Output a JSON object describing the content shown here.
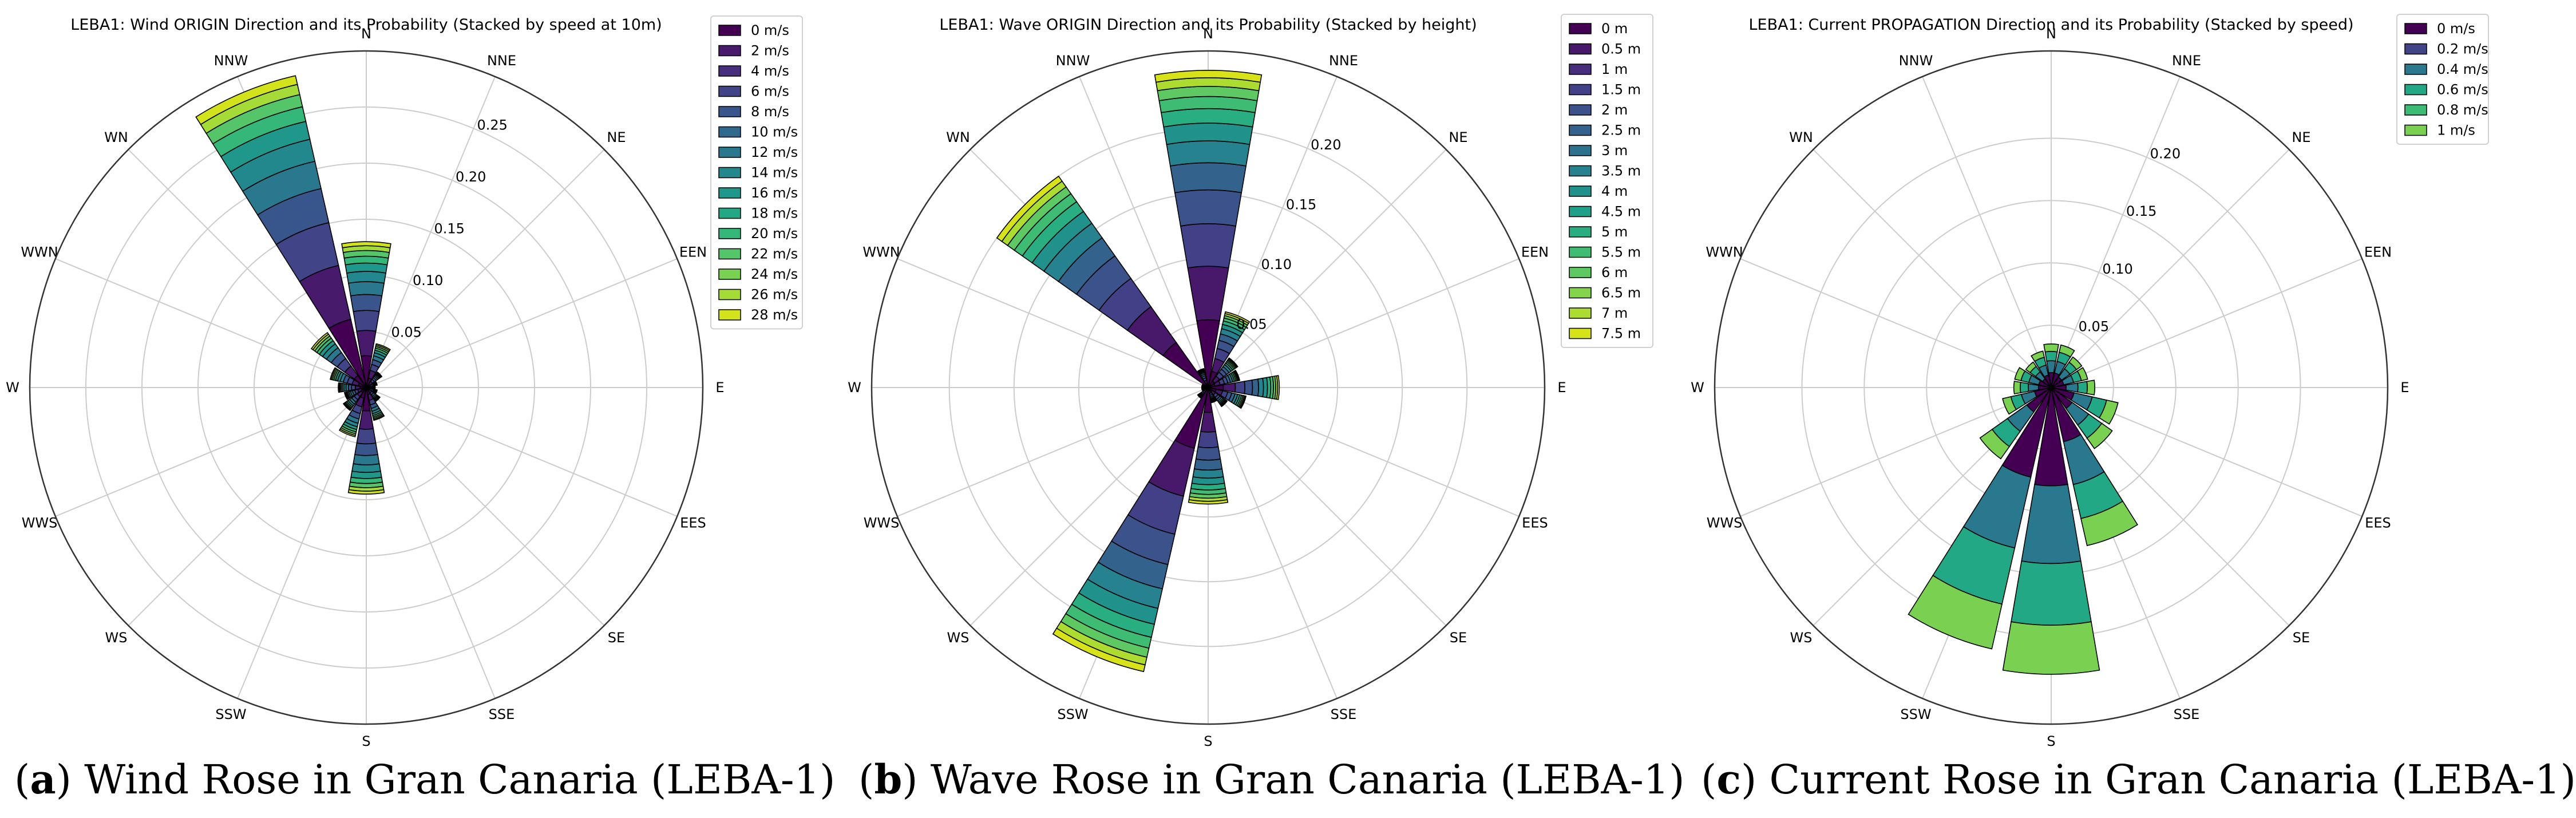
{
  "directions": [
    "N",
    "NNE",
    "NE",
    "EEN",
    "E",
    "EES",
    "SE",
    "SSE",
    "S",
    "SSW",
    "WS",
    "WWS",
    "W",
    "WWN",
    "WN",
    "NNW"
  ],
  "captions": [
    {
      "letter": "a",
      "text": "Wind Rose in Gran Canaria (LEBA-1)"
    },
    {
      "letter": "b",
      "text": "Wave Rose in Gran Canaria (LEBA-1)"
    },
    {
      "letter": "c",
      "text": "Current Rose in Gran Canaria (LEBA-1)"
    }
  ],
  "chart_data": [
    {
      "type": "polar-stacked-bar",
      "title": "LEBA1: Wind ORIGIN Direction and its Probability (Stacked by speed at 10m)",
      "rlim": [
        0,
        0.3
      ],
      "rticks": [
        "0.05",
        "0.10",
        "0.15",
        "0.20",
        "0.25"
      ],
      "rtick_values": [
        0.05,
        0.1,
        0.15,
        0.2,
        0.25
      ],
      "legend": [
        "0 m/s",
        "2 m/s",
        "4 m/s",
        "6 m/s",
        "8 m/s",
        "10 m/s",
        "12 m/s",
        "14 m/s",
        "16 m/s",
        "18 m/s",
        "20 m/s",
        "22 m/s",
        "24 m/s",
        "26 m/s",
        "28 m/s"
      ],
      "colors": [
        "#440154",
        "#481a6c",
        "#472f7d",
        "#414487",
        "#39568c",
        "#31688e",
        "#2a788e",
        "#23888e",
        "#1f988b",
        "#22a884",
        "#35b779",
        "#54c568",
        "#7ad151",
        "#a5db36",
        "#d2e21b"
      ],
      "totals": [
        0.13,
        0.04,
        0.017,
        0.01,
        0.008,
        0.01,
        0.015,
        0.03,
        0.095,
        0.045,
        0.025,
        0.02,
        0.025,
        0.033,
        0.06,
        0.285
      ],
      "steps": 11
    },
    {
      "type": "polar-stacked-bar",
      "title": "LEBA1: Wave ORIGIN Direction and its Probability (Stacked by height)",
      "rlim": [
        0,
        0.26
      ],
      "rticks": [
        "0.05",
        "0.10",
        "0.15",
        "0.20"
      ],
      "rtick_values": [
        0.05,
        0.1,
        0.15,
        0.2
      ],
      "legend": [
        "0 m",
        "0.5 m",
        "1 m",
        "1.5 m",
        "2 m",
        "2.5 m",
        "3 m",
        "3.5 m",
        "4 m",
        "4.5 m",
        "5 m",
        "5.5 m",
        "6 m",
        "6.5 m",
        "7 m",
        "7.5 m"
      ],
      "colors": [
        "#440154",
        "#48186a",
        "#472d7b",
        "#424086",
        "#3b528b",
        "#33638d",
        "#2c728e",
        "#26828e",
        "#21918c",
        "#1fa088",
        "#28ae80",
        "#3fbc73",
        "#5ec962",
        "#84d44b",
        "#addc30",
        "#d8e219"
      ],
      "totals": [
        0.245,
        0.06,
        0.028,
        0.025,
        0.055,
        0.03,
        0.018,
        0.012,
        0.09,
        0.225,
        0.01,
        0.005,
        0.005,
        0.005,
        0.2,
        0.015
      ],
      "steps": 12
    },
    {
      "type": "polar-stacked-bar",
      "title": "LEBA1: Current PROPAGATION Direction and its Probability (Stacked by speed)",
      "rlim": [
        0,
        0.27
      ],
      "rticks": [
        "0.05",
        "0.10",
        "0.15",
        "0.20"
      ],
      "rtick_values": [
        0.05,
        0.1,
        0.15,
        0.2
      ],
      "legend": [
        "0 m/s",
        "0.2 m/s",
        "0.4 m/s",
        "0.6 m/s",
        "0.8 m/s",
        "1 m/s"
      ],
      "colors": [
        "#440154",
        "#414487",
        "#2a788e",
        "#22a884",
        "#3bbb75",
        "#7ad151"
      ],
      "totals": [
        0.035,
        0.035,
        0.03,
        0.03,
        0.035,
        0.055,
        0.06,
        0.13,
        0.23,
        0.215,
        0.07,
        0.04,
        0.03,
        0.03,
        0.025,
        0.03
      ],
      "steps": 4
    }
  ]
}
